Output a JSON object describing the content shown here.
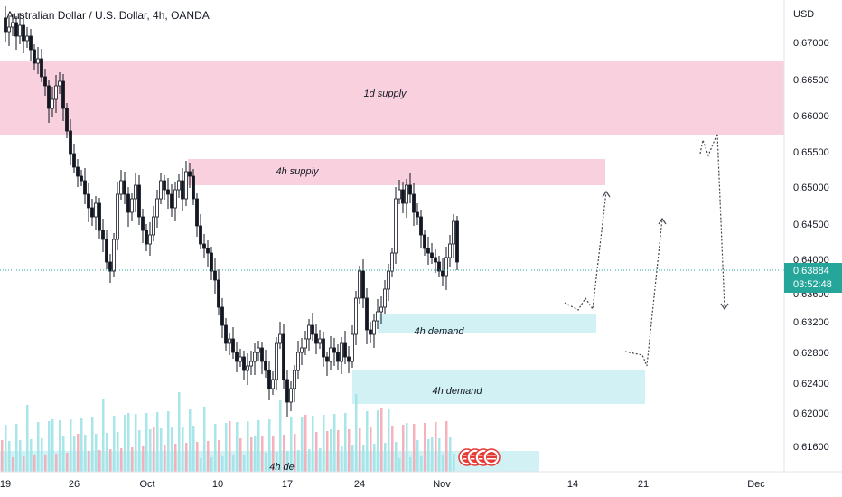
{
  "header": {
    "title": "Australian Dollar / U.S. Dollar, 4h, OANDA"
  },
  "chart_data": {
    "type": "candlestick",
    "symbol": "Australian Dollar / U.S. Dollar",
    "timeframe": "4h",
    "source": "OANDA",
    "currency_label": "USD",
    "y_ticks": [
      "0.67000",
      "0.66500",
      "0.66000",
      "0.65500",
      "0.65000",
      "0.64500",
      "0.64000",
      "0.63600",
      "0.63200",
      "0.62800",
      "0.62400",
      "0.62000",
      "0.61600"
    ],
    "x_ticks": [
      "19",
      "26",
      "Oct",
      "10",
      "17",
      "24",
      "Nov",
      "14",
      "21",
      "Dec"
    ],
    "last_price": "0.63884",
    "countdown": "03:52:48",
    "zones": [
      {
        "label": "1d supply",
        "kind": "supply",
        "x_start": "19",
        "x_end": "Dec",
        "y_top": 0.6675,
        "y_bottom": 0.6572
      },
      {
        "label": "4h supply",
        "kind": "supply",
        "x_start": "Oct",
        "x_end": "14",
        "y_top": 0.654,
        "y_bottom": 0.6503
      },
      {
        "label": "4h demand",
        "kind": "demand",
        "x_start": "24",
        "x_end": "14",
        "y_top": 0.6336,
        "y_bottom": 0.631
      },
      {
        "label": "4h demand",
        "kind": "demand",
        "x_start": "17",
        "x_end": "21",
        "y_top": 0.626,
        "y_bottom": 0.621
      },
      {
        "label": "4h de",
        "kind": "demand",
        "x_start": "19",
        "x_end": "14",
        "y_top": 0.615,
        "y_bottom": 0.613
      }
    ],
    "projections": [
      {
        "points": [
          [
            0.6365,
            "mid-Nov"
          ],
          [
            0.636,
            "mid-Nov"
          ],
          [
            0.637,
            "mid-Nov"
          ],
          [
            0.6495,
            "14"
          ]
        ]
      },
      {
        "points": [
          [
            0.6285,
            "14"
          ],
          [
            0.628,
            "mid"
          ],
          [
            0.629,
            "21"
          ],
          [
            0.646,
            "21"
          ]
        ]
      },
      {
        "points": [
          [
            0.6553,
            "late-Nov"
          ],
          [
            0.657,
            "late-Nov"
          ],
          [
            0.6558,
            "late-Nov"
          ],
          [
            0.6575,
            "late-Nov"
          ],
          [
            0.6345,
            "late-Nov"
          ]
        ]
      }
    ],
    "colors": {
      "up": "#131722",
      "down": "#131722",
      "supply_zone": "#f8c8d8",
      "demand_zone": "#c9eef2",
      "volume_up": "#9fe3e8",
      "volume_down": "#f5aab4",
      "price_tag": "#26a69a",
      "dotted_line": "#26a69a"
    }
  }
}
